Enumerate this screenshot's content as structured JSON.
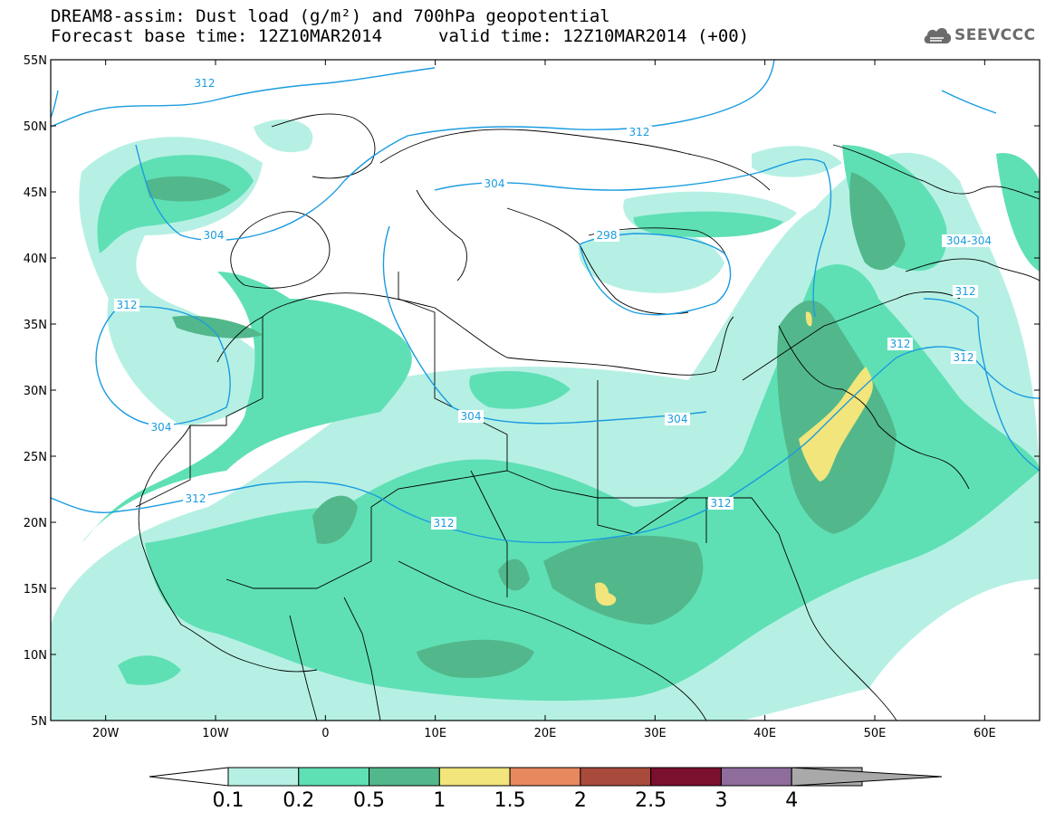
{
  "header": {
    "line1": "DREAM8-assim: Dust load (g/m²) and 700hPa geopotential",
    "line2_left": "Forecast base time: 12Z10MAR2014",
    "line2_right": "valid time: 12Z10MAR2014 (+00)"
  },
  "logo": {
    "text": "SEEVCCC",
    "icon": "cloud-icon"
  },
  "map": {
    "lon_range": [
      -25,
      65
    ],
    "lat_range": [
      5,
      55
    ],
    "lat_ticks": [
      "55N",
      "50N",
      "45N",
      "40N",
      "35N",
      "30N",
      "25N",
      "20N",
      "15N",
      "10N",
      "5N"
    ],
    "lon_ticks": [
      "20W",
      "10W",
      "0",
      "10E",
      "20E",
      "30E",
      "40E",
      "50E",
      "60E"
    ],
    "contour_labels": [
      "312",
      "304",
      "312",
      "304",
      "312",
      "304",
      "298",
      "312",
      "304",
      "304",
      "312",
      "312",
      "312",
      "312",
      "312",
      "304-304"
    ]
  },
  "colorbar": {
    "labels": [
      "0.1",
      "0.2",
      "0.5",
      "1",
      "1.5",
      "2",
      "2.5",
      "3",
      "4"
    ],
    "colors": [
      "#b6f0e4",
      "#5fe0b4",
      "#52b88c",
      "#f1e57b",
      "#e7895f",
      "#a84b3d",
      "#7a0f2e",
      "#8e6c9c",
      "#a9a9a9"
    ]
  },
  "colors": {
    "light": "#b6f0e4",
    "medium": "#5fe0b4",
    "dark": "#52b88c",
    "yellow": "#f1e57b",
    "contour": "#1a9ce0",
    "border": "#000000"
  }
}
